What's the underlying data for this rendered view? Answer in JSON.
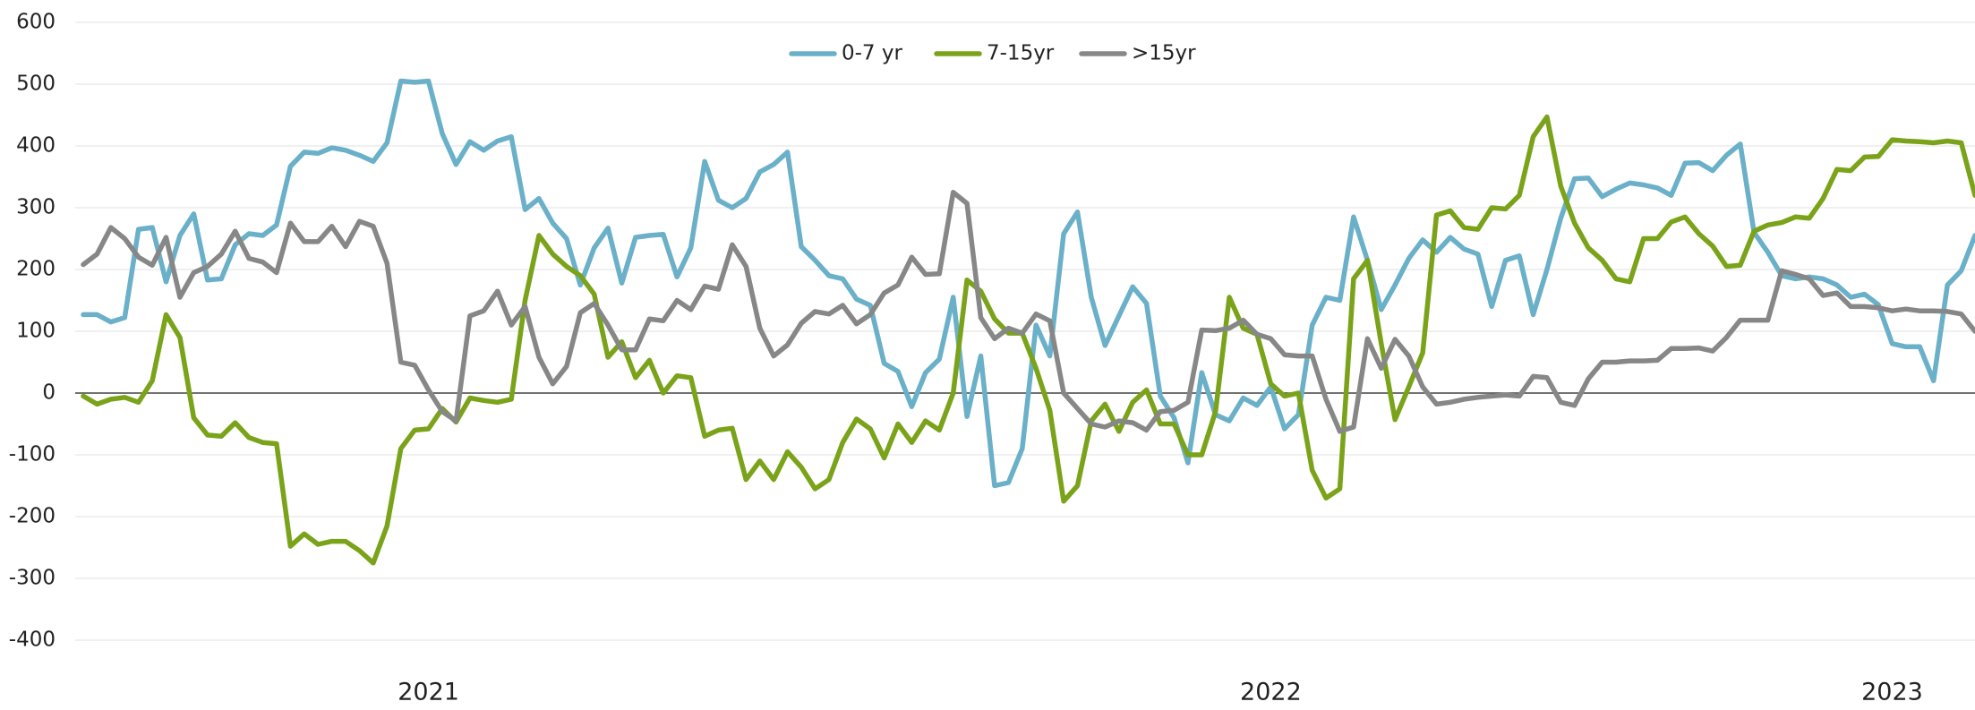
{
  "chart_data": {
    "type": "line",
    "categories": [
      null,
      null,
      null,
      null,
      null,
      null,
      null,
      null,
      null,
      null,
      null,
      null,
      null,
      null,
      null,
      null,
      null,
      null,
      null,
      null,
      null,
      null,
      null,
      null,
      null,
      "2021",
      null,
      null,
      null,
      null,
      null,
      null,
      null,
      null,
      null,
      null,
      null,
      null,
      null,
      null,
      null,
      null,
      null,
      null,
      null,
      null,
      null,
      null,
      null,
      null,
      null,
      null,
      null,
      null,
      null,
      null,
      null,
      null,
      null,
      null,
      null,
      null,
      null,
      null,
      null,
      null,
      null,
      null,
      null,
      null,
      null,
      null,
      null,
      null,
      null,
      null,
      null,
      null,
      null,
      null,
      null,
      null,
      null,
      null,
      null,
      null,
      "2022",
      null,
      null,
      null,
      null,
      null,
      null,
      null,
      null,
      null,
      null,
      null,
      null,
      null,
      null,
      null,
      null,
      null,
      null,
      null,
      null,
      null,
      null,
      null,
      null,
      null,
      null,
      null,
      null,
      null,
      null,
      null,
      null,
      null,
      null,
      null,
      null,
      null,
      null,
      null,
      null,
      null,
      null,
      null,
      null,
      "2023",
      null,
      null,
      null,
      null,
      null,
      null
    ],
    "series": [
      {
        "name": "0-7 yr",
        "color": "#6ab0c8",
        "values": [
          127,
          127,
          115,
          122,
          265,
          268,
          180,
          255,
          290,
          183,
          185,
          240,
          258,
          255,
          272,
          367,
          390,
          388,
          397,
          393,
          385,
          375,
          405,
          505,
          503,
          505,
          420,
          370,
          407,
          393,
          408,
          415,
          297,
          315,
          275,
          250,
          175,
          235,
          267,
          178,
          252,
          255,
          257,
          188,
          235,
          375,
          312,
          300,
          315,
          358,
          370,
          390,
          237,
          215,
          190,
          185,
          152,
          142,
          48,
          35,
          -22,
          33,
          55,
          155,
          -38,
          60,
          -150,
          -145,
          -90,
          110,
          60,
          258,
          293,
          155,
          77,
          125,
          172,
          145,
          -5,
          -40,
          -113,
          33,
          -35,
          -45,
          -8,
          -20,
          10,
          -58,
          -35,
          110,
          155,
          150,
          285,
          215,
          135,
          175,
          218,
          248,
          228,
          252,
          233,
          225,
          140,
          215,
          222,
          127,
          200,
          283,
          347,
          348,
          318,
          330,
          340,
          337,
          332,
          320,
          372,
          373,
          360,
          385,
          403,
          260,
          228,
          190,
          185,
          188,
          185,
          175,
          155,
          160,
          143,
          80,
          75,
          75,
          20,
          175,
          198,
          255
        ]
      },
      {
        "name": "7-15yr",
        "color": "#7aa31a",
        "values": [
          -5,
          -18,
          -10,
          -7,
          -15,
          20,
          127,
          90,
          -40,
          -68,
          -70,
          -48,
          -72,
          -80,
          -82,
          -248,
          -228,
          -245,
          -240,
          -240,
          -255,
          -275,
          -215,
          -90,
          -60,
          -58,
          -25,
          -47,
          -8,
          -12,
          -15,
          -10,
          150,
          255,
          225,
          205,
          190,
          160,
          58,
          83,
          25,
          53,
          0,
          28,
          25,
          -70,
          -60,
          -57,
          -140,
          -110,
          -140,
          -95,
          -120,
          -155,
          -140,
          -80,
          -42,
          -58,
          -105,
          -50,
          -80,
          -45,
          -60,
          0,
          183,
          165,
          120,
          97,
          97,
          40,
          -28,
          -175,
          -150,
          -45,
          -18,
          -62,
          -15,
          5,
          -50,
          -50,
          -100,
          -100,
          -30,
          155,
          105,
          95,
          15,
          -5,
          0,
          -125,
          -170,
          -155,
          185,
          215,
          80,
          -43,
          10,
          65,
          288,
          295,
          268,
          265,
          300,
          298,
          320,
          415,
          447,
          335,
          275,
          235,
          215,
          185,
          180,
          250,
          250,
          277,
          285,
          258,
          238,
          205,
          207,
          262,
          272,
          276,
          285,
          283,
          315,
          362,
          360,
          382,
          383,
          410,
          408,
          407,
          405,
          408,
          405,
          320
        ]
      },
      {
        "name": ">15yr",
        "color": "#878787",
        "values": [
          208,
          225,
          268,
          250,
          220,
          207,
          252,
          155,
          195,
          205,
          225,
          262,
          218,
          212,
          195,
          275,
          245,
          245,
          270,
          237,
          278,
          270,
          210,
          50,
          45,
          5,
          -30,
          -45,
          125,
          133,
          165,
          110,
          140,
          58,
          15,
          43,
          130,
          145,
          110,
          70,
          70,
          120,
          117,
          150,
          135,
          173,
          168,
          240,
          205,
          105,
          60,
          78,
          113,
          132,
          128,
          142,
          112,
          127,
          162,
          175,
          220,
          192,
          193,
          325,
          307,
          122,
          88,
          105,
          97,
          128,
          117,
          0,
          -25,
          -50,
          -55,
          -45,
          -48,
          -60,
          -30,
          -28,
          -15,
          102,
          101,
          105,
          118,
          95,
          88,
          62,
          60,
          60,
          -10,
          -62,
          -55,
          88,
          40,
          87,
          60,
          10,
          -18,
          -15,
          -10,
          -7,
          -5,
          -3,
          -5,
          27,
          25,
          -15,
          -20,
          23,
          50,
          50,
          52,
          52,
          53,
          72,
          72,
          73,
          68,
          90,
          118,
          118,
          118,
          198,
          192,
          185,
          158,
          162,
          140,
          140,
          138,
          133,
          136,
          133,
          133,
          132,
          128,
          100
        ]
      }
    ],
    "ylim": [
      -400,
      600
    ],
    "yticks": [
      -400,
      -300,
      -200,
      -100,
      0,
      100,
      200,
      300,
      400,
      500,
      600
    ],
    "grid": true,
    "legend": "top"
  }
}
